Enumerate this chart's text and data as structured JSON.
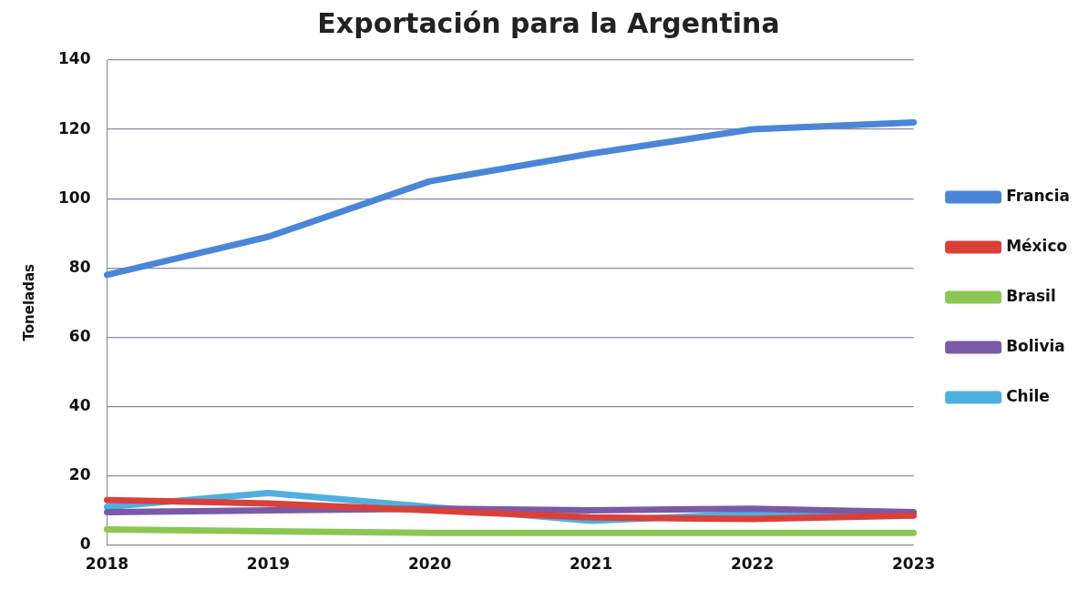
{
  "chart_data": {
    "type": "line",
    "title": "Exportación para la Argentina",
    "ylabel": "Toneladas",
    "categories": [
      "2018",
      "2019",
      "2020",
      "2021",
      "2022",
      "2023"
    ],
    "ylim": [
      0,
      140
    ],
    "yticks": [
      0,
      20,
      40,
      60,
      80,
      100,
      120,
      140
    ],
    "grid": "y",
    "legend": "right",
    "marker": "none",
    "line_style": "solid",
    "series": [
      {
        "name": "Francia",
        "color": "#4a86d8",
        "values": [
          78,
          89,
          105,
          113,
          120,
          122
        ]
      },
      {
        "name": "México",
        "color": "#d9403a",
        "values": [
          13,
          12,
          10,
          8,
          7.5,
          8.5
        ]
      },
      {
        "name": "Brasil",
        "color": "#8cc653",
        "values": [
          4.5,
          4,
          3.5,
          3.5,
          3.5,
          3.5
        ]
      },
      {
        "name": "Bolivia",
        "color": "#7a5aa8",
        "values": [
          9.5,
          10,
          10.5,
          10,
          10.5,
          9.5
        ]
      },
      {
        "name": "Chile",
        "color": "#4fb0e0",
        "values": [
          11,
          15,
          11,
          7,
          9,
          9
        ]
      }
    ]
  }
}
